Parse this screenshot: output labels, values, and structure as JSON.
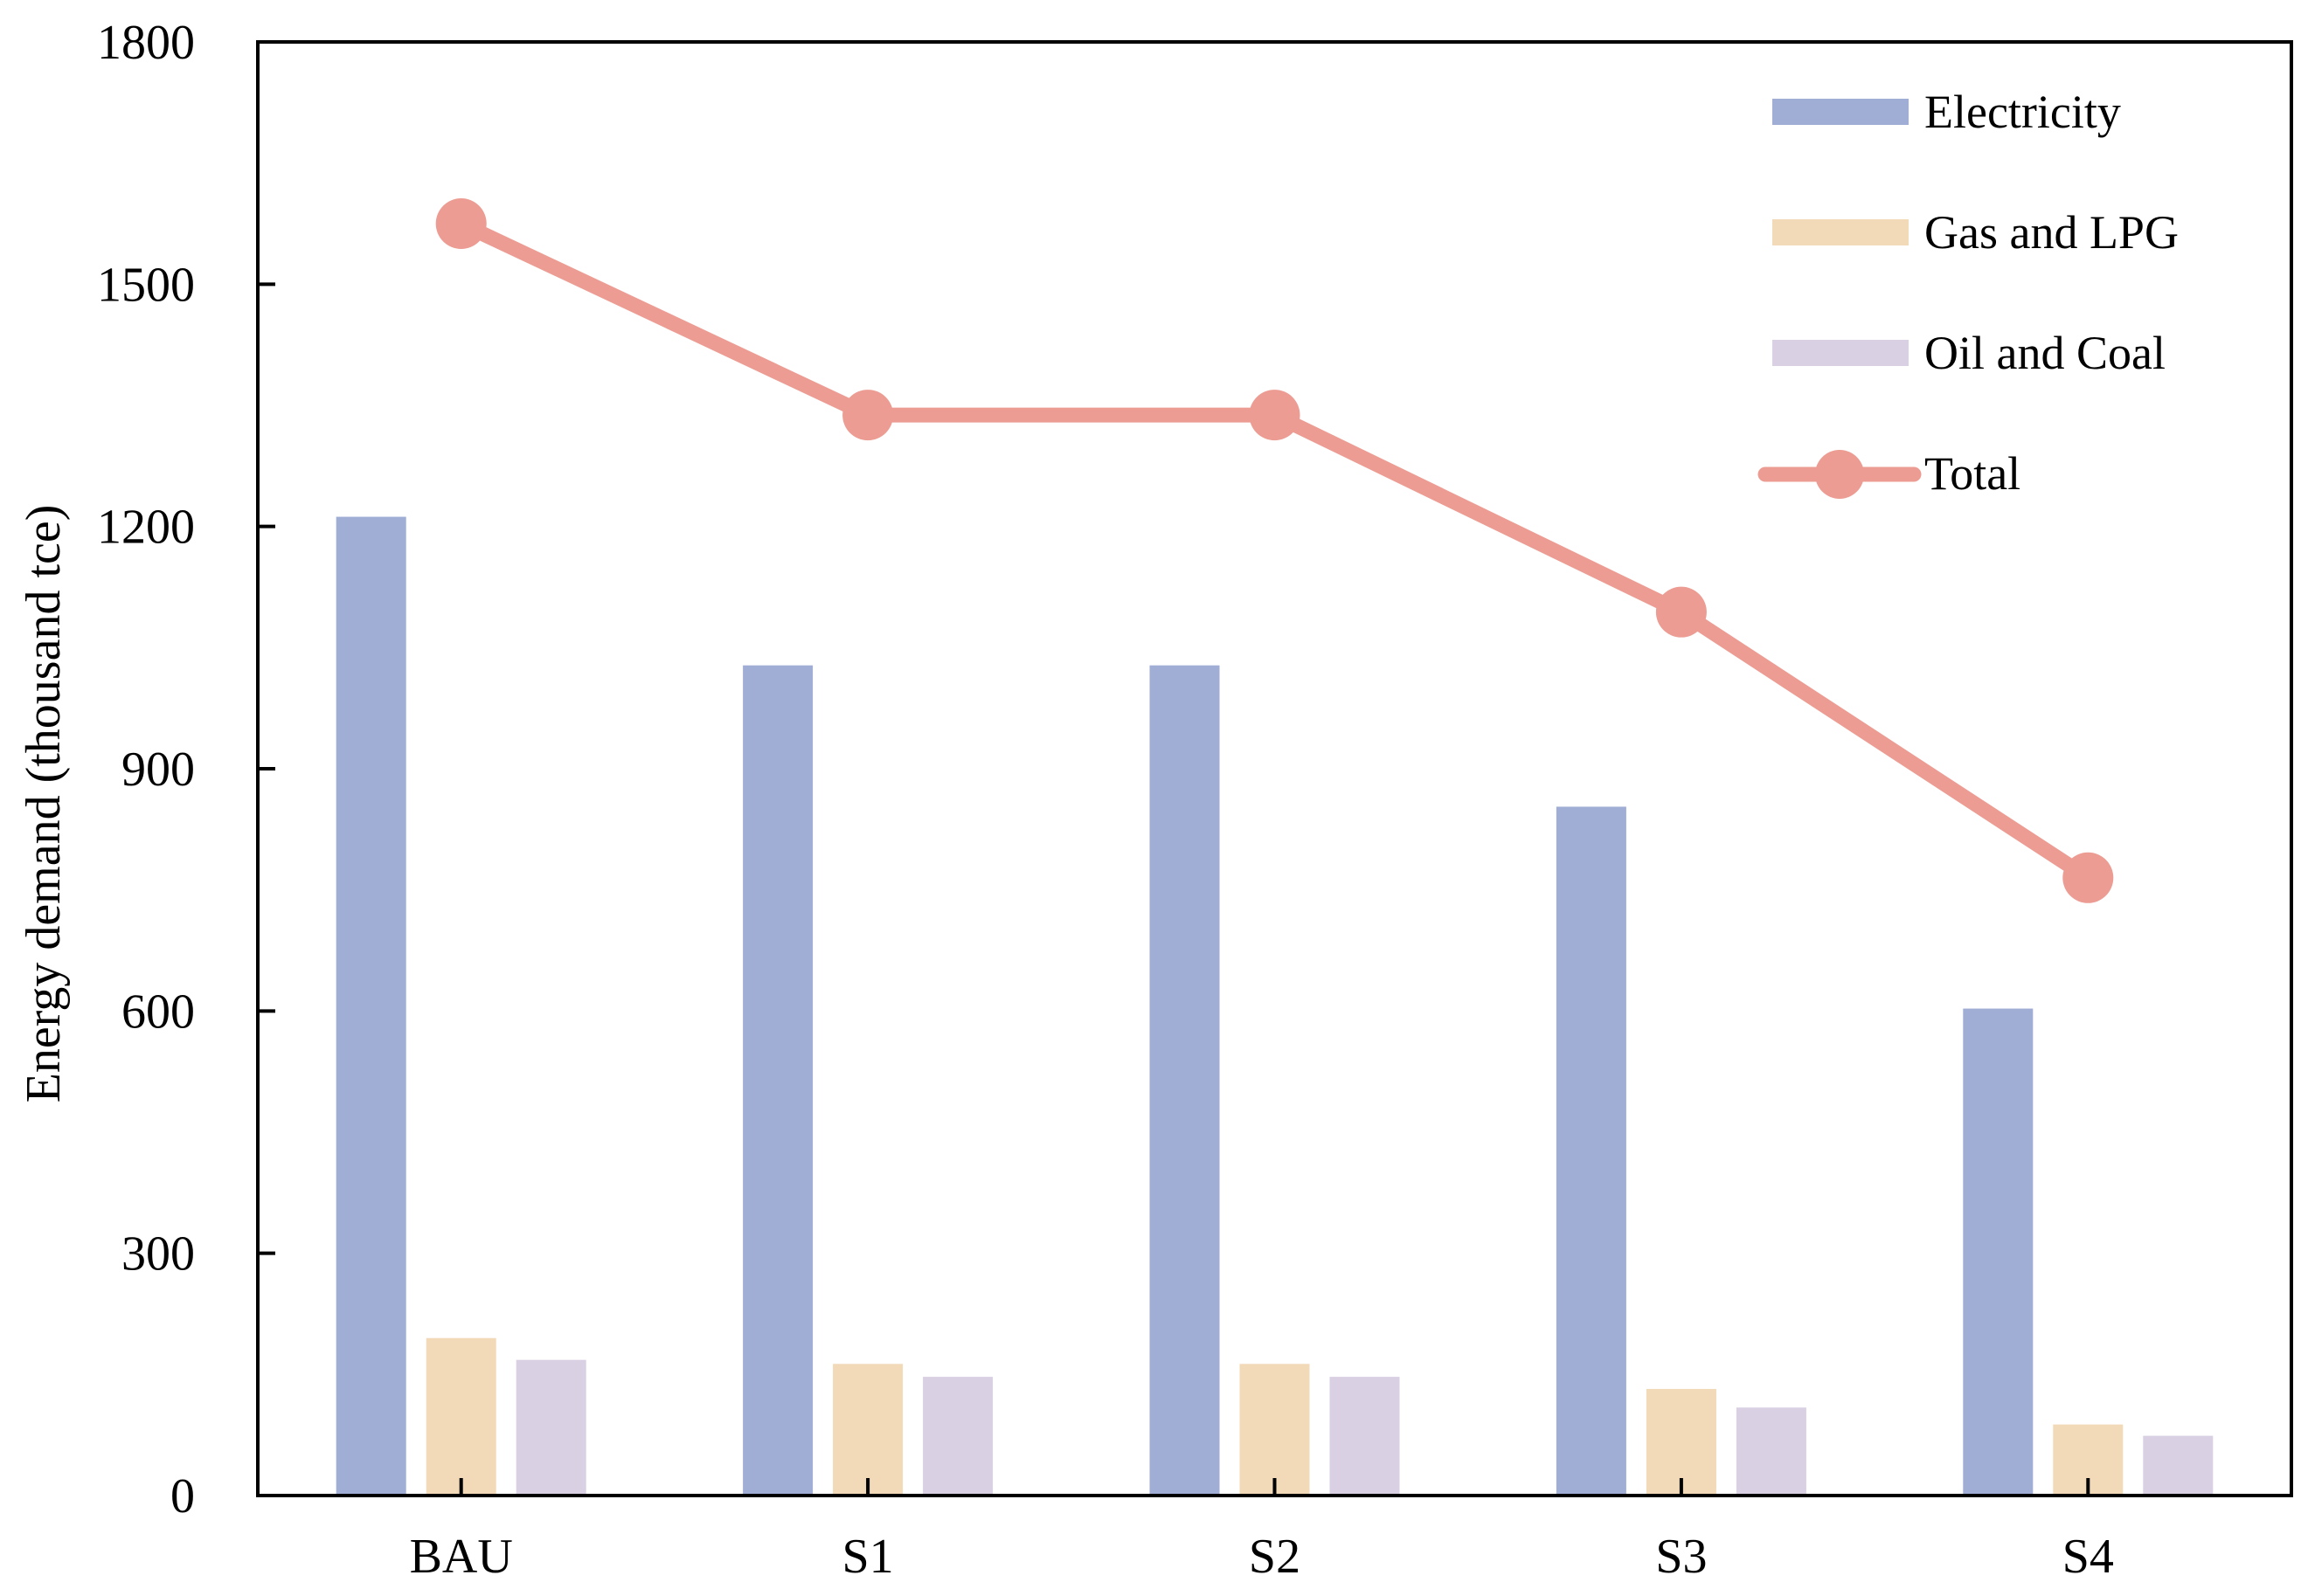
{
  "colors": {
    "electricity": "#a0aed6",
    "gas_lpg": "#f2d9b7",
    "oil_coal": "#d9d0e3",
    "total": "#ec9c92",
    "axis": "#000000"
  },
  "chart_data": {
    "type": "bar",
    "categories": [
      "BAU",
      "S1",
      "S2",
      "S3",
      "S4"
    ],
    "series": [
      {
        "name": "Electricity",
        "kind": "bar",
        "color_key": "electricity",
        "values": [
          1212,
          1028,
          1028,
          853,
          603
        ]
      },
      {
        "name": "Gas and LPG",
        "kind": "bar",
        "color_key": "gas_lpg",
        "values": [
          195,
          163,
          163,
          132,
          88
        ]
      },
      {
        "name": "Oil and Coal",
        "kind": "bar",
        "color_key": "oil_coal",
        "values": [
          168,
          147,
          147,
          109,
          74
        ]
      },
      {
        "name": "Total",
        "kind": "line",
        "color_key": "total",
        "values": [
          1575,
          1338,
          1338,
          1094,
          765
        ]
      }
    ],
    "xlabel": "",
    "ylabel": "Energy demand (thousand tce)",
    "ylim": [
      0,
      1800
    ],
    "yticks": [
      "0",
      "300",
      "600",
      "900",
      "1200",
      "1500",
      "1800"
    ],
    "grid": false,
    "legend_position": "top-right"
  }
}
